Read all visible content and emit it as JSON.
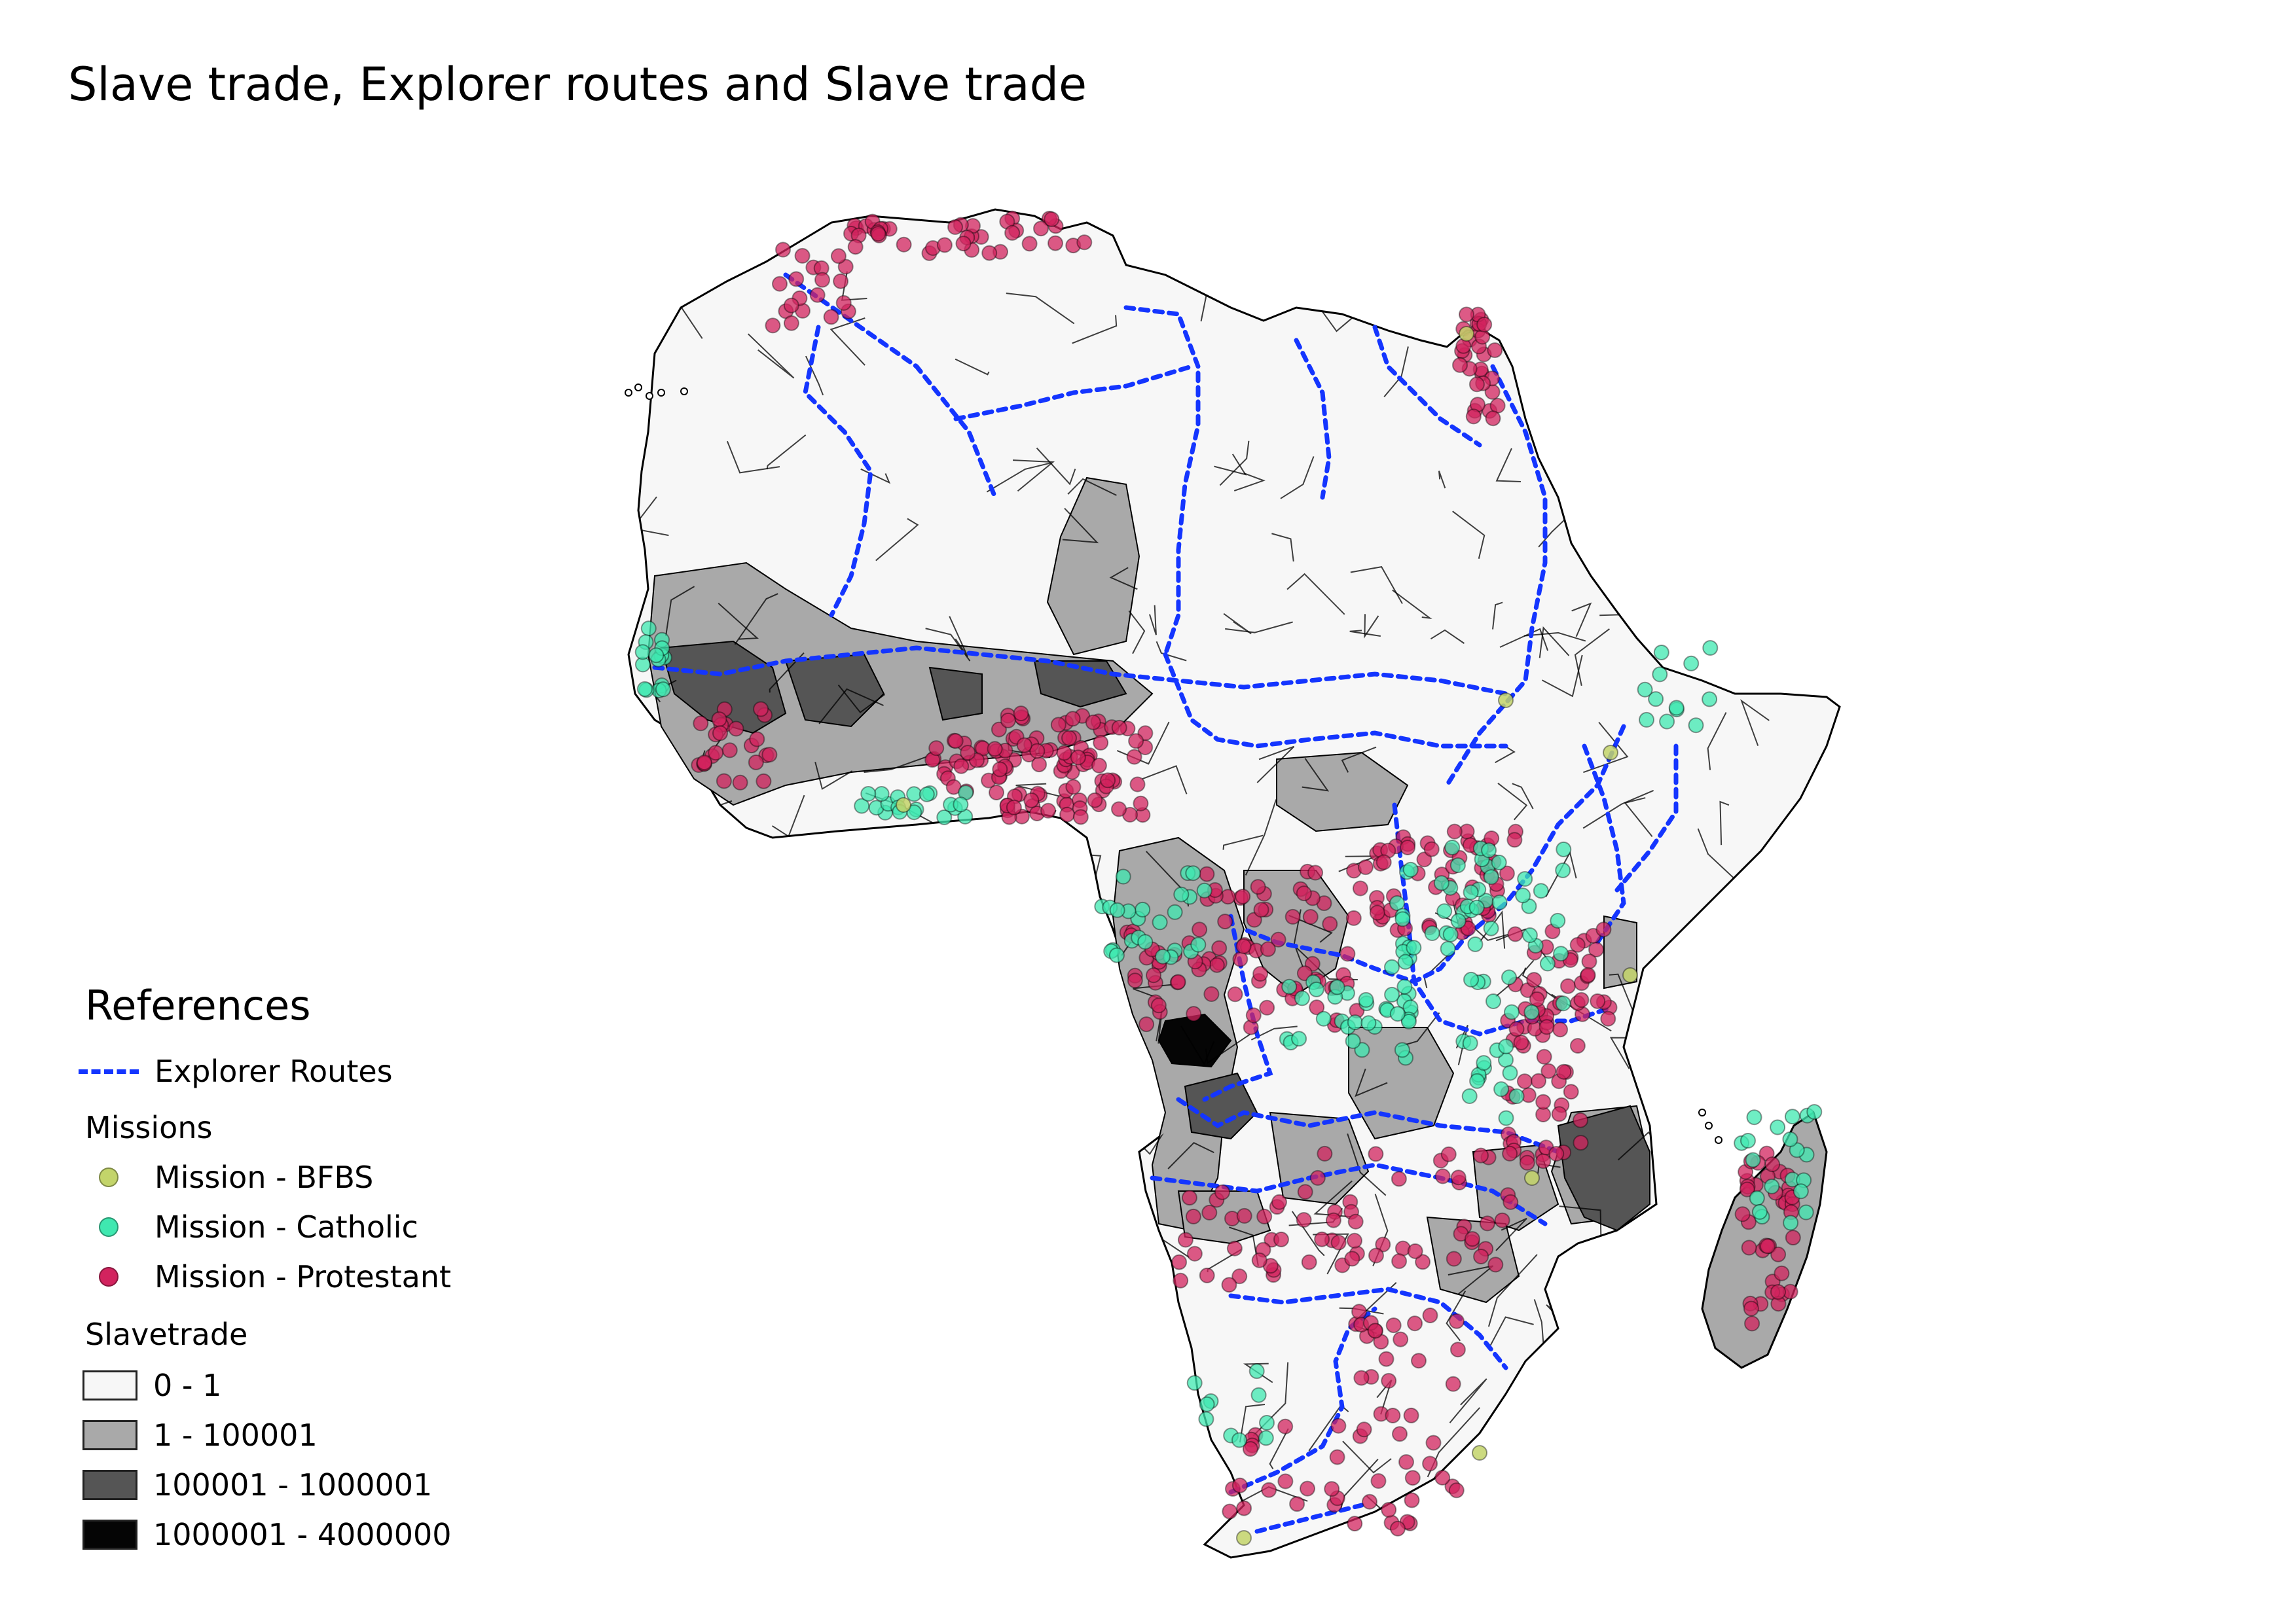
{
  "title": "Slave trade, Explorer routes and Slave trade",
  "colors": {
    "explorer_route": "#1435ff",
    "mission_bfbs": "#c3d46a",
    "mission_catholic": "#3fe8b0",
    "mission_protestant": "#d2235e",
    "slavetrade_0": "#f7f7f7",
    "slavetrade_1": "#a9a9a9",
    "slavetrade_2": "#555555",
    "slavetrade_3": "#050505"
  },
  "legend": {
    "heading": "References",
    "explorer_routes_label": "Explorer Routes",
    "missions_group": "Missions",
    "mission_items": [
      {
        "label": "Mission - BFBS",
        "color_key": "mission_bfbs"
      },
      {
        "label": "Mission - Catholic",
        "color_key": "mission_catholic"
      },
      {
        "label": "Mission - Protestant",
        "color_key": "mission_protestant"
      }
    ],
    "slavetrade_group": "Slavetrade",
    "slavetrade_items": [
      {
        "label": "0 - 1",
        "color_key": "slavetrade_0"
      },
      {
        "label": "1 - 100001",
        "color_key": "slavetrade_1"
      },
      {
        "label": "100001 - 1000001",
        "color_key": "slavetrade_2"
      },
      {
        "label": "1000001 - 4000000",
        "color_key": "slavetrade_3"
      }
    ]
  }
}
